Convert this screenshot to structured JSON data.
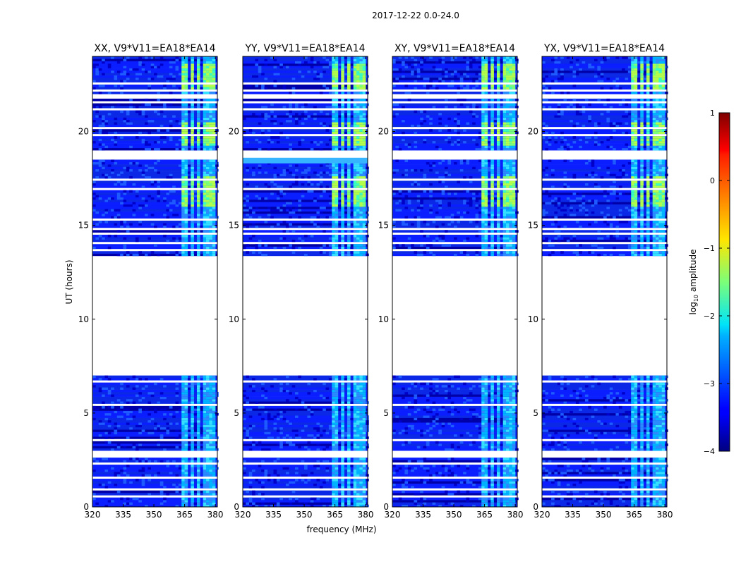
{
  "chart_data": {
    "type": "heatmap",
    "suptitle": "2017-12-22 0.0-24.0",
    "xlabel": "frequency (MHz)",
    "ylabel": "UT (hours)",
    "xlim": [
      320,
      381
    ],
    "ylim": [
      0,
      24
    ],
    "xticks": [
      320,
      335,
      350,
      365,
      380
    ],
    "yticks": [
      0,
      5,
      10,
      15,
      20
    ],
    "panels": [
      {
        "title": "XX, V9*V11=EA18*EA14",
        "pol": "XX"
      },
      {
        "title": "YY, V9*V11=EA18*EA14",
        "pol": "YY"
      },
      {
        "title": "XY, V9*V11=EA18*EA14",
        "pol": "XY"
      },
      {
        "title": "YX, V9*V11=EA18*EA14",
        "pol": "YX"
      }
    ],
    "colorbar": {
      "label": "log10 amplitude",
      "label_main": "log",
      "label_sub": "10",
      "label_rest": " amplitude",
      "range": [
        -4,
        1
      ],
      "ticks": [
        1,
        0,
        -1,
        -2,
        -3,
        -4
      ]
    },
    "gaps_ut": [
      [
        7.0,
        13.3
      ],
      [
        2.6,
        2.95
      ],
      [
        18.45,
        18.95
      ],
      [
        21.4,
        21.55
      ],
      [
        21.75,
        21.9
      ],
      [
        22.1,
        22.2
      ],
      [
        13.9,
        14.05
      ],
      [
        14.45,
        14.55
      ],
      [
        14.7,
        14.85
      ],
      [
        3.45,
        3.55
      ],
      [
        1.5,
        1.6
      ],
      [
        6.6,
        6.7
      ],
      [
        4.65,
        4.75
      ],
      [
        0.15,
        0.25
      ],
      [
        0.45,
        0.55
      ],
      [
        5.35,
        5.45
      ],
      [
        16.85,
        16.95
      ],
      [
        17.3,
        17.4
      ],
      [
        17.65,
        17.75
      ],
      [
        15.25,
        15.35
      ],
      [
        22.45,
        22.55
      ],
      [
        20.05,
        20.15
      ],
      [
        19.75,
        19.85
      ],
      [
        21.1,
        21.2
      ],
      [
        16.4,
        16.5
      ],
      [
        15.9,
        15.98
      ],
      [
        13.6,
        13.68
      ],
      [
        0.85,
        0.93
      ],
      [
        2.2,
        2.3
      ]
    ],
    "rfi_bands_mhz": [
      [
        363.5,
        366.5
      ],
      [
        367.5,
        369.5
      ],
      [
        371,
        372.5
      ],
      [
        374,
        376.5
      ],
      [
        377.5,
        379.5
      ]
    ],
    "bright_hours": [
      [
        22.2,
        23.6
      ],
      [
        16.0,
        17.6
      ],
      [
        19.2,
        20.4
      ]
    ]
  }
}
